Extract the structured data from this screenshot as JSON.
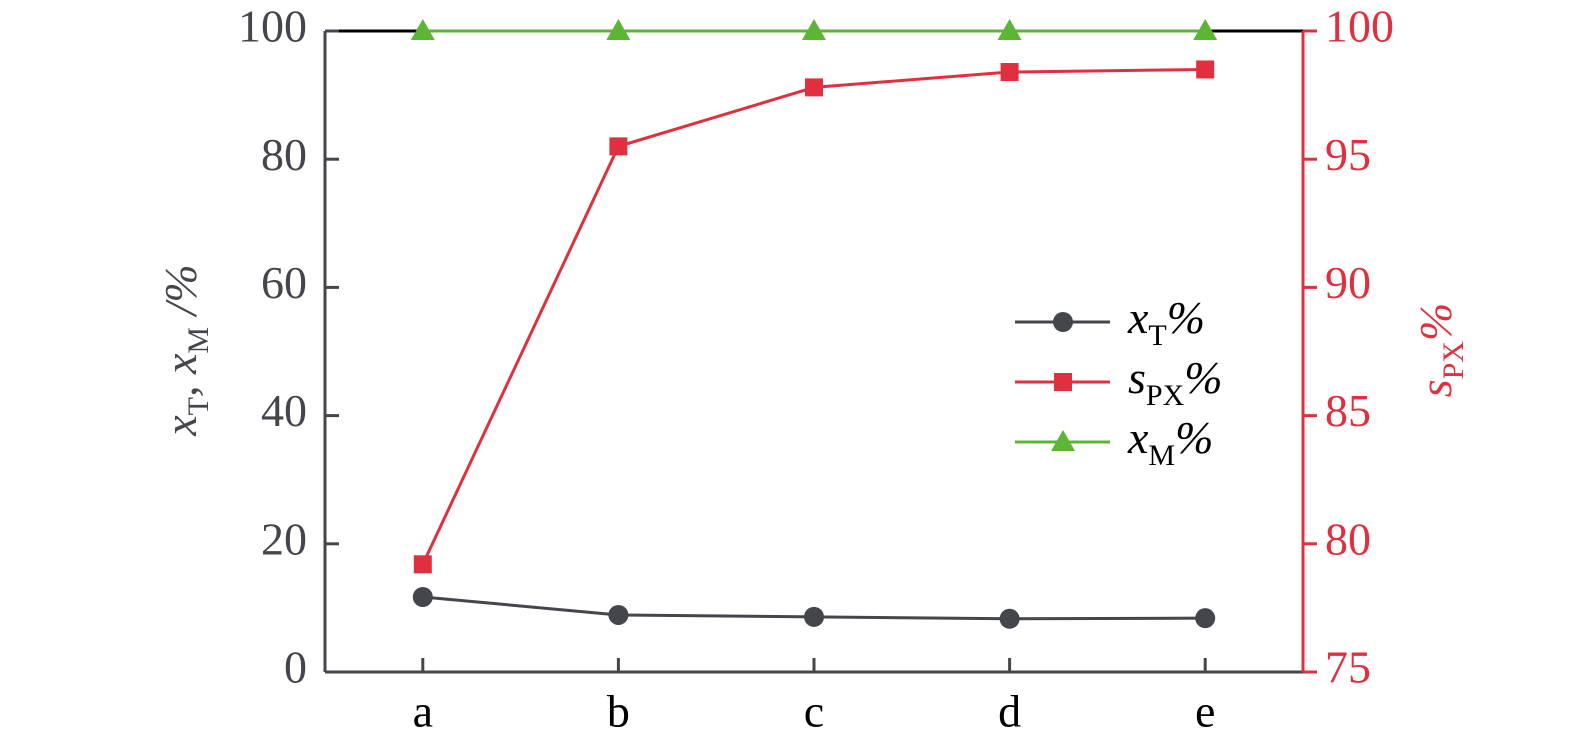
{
  "chart_data": {
    "type": "line",
    "categories": [
      "a",
      "b",
      "c",
      "d",
      "e"
    ],
    "series": [
      {
        "name": "xT%",
        "color": "#45464b",
        "marker": "circle",
        "values": [
          11.7,
          8.9,
          8.6,
          8.3,
          8.4
        ]
      },
      {
        "name": "sPX%",
        "color": "#e0303f",
        "marker": "square",
        "axis": "y2",
        "values": [
          79.2,
          95.5,
          97.8,
          98.4,
          98.5
        ]
      },
      {
        "name": "xM%",
        "color": "#5db535",
        "marker": "triangle",
        "values": [
          100,
          100,
          100,
          100,
          100
        ]
      }
    ],
    "ylabel": "xT, xM /%",
    "y2label": "sPX%",
    "ylim": [
      0,
      100
    ],
    "yticks": [
      0,
      20,
      40,
      60,
      80,
      100
    ],
    "y2lim": [
      75,
      100
    ],
    "y2ticks": [
      75,
      80,
      85,
      90,
      95,
      100
    ],
    "y2color": "#e0303f",
    "ycolor": "#45464b"
  }
}
